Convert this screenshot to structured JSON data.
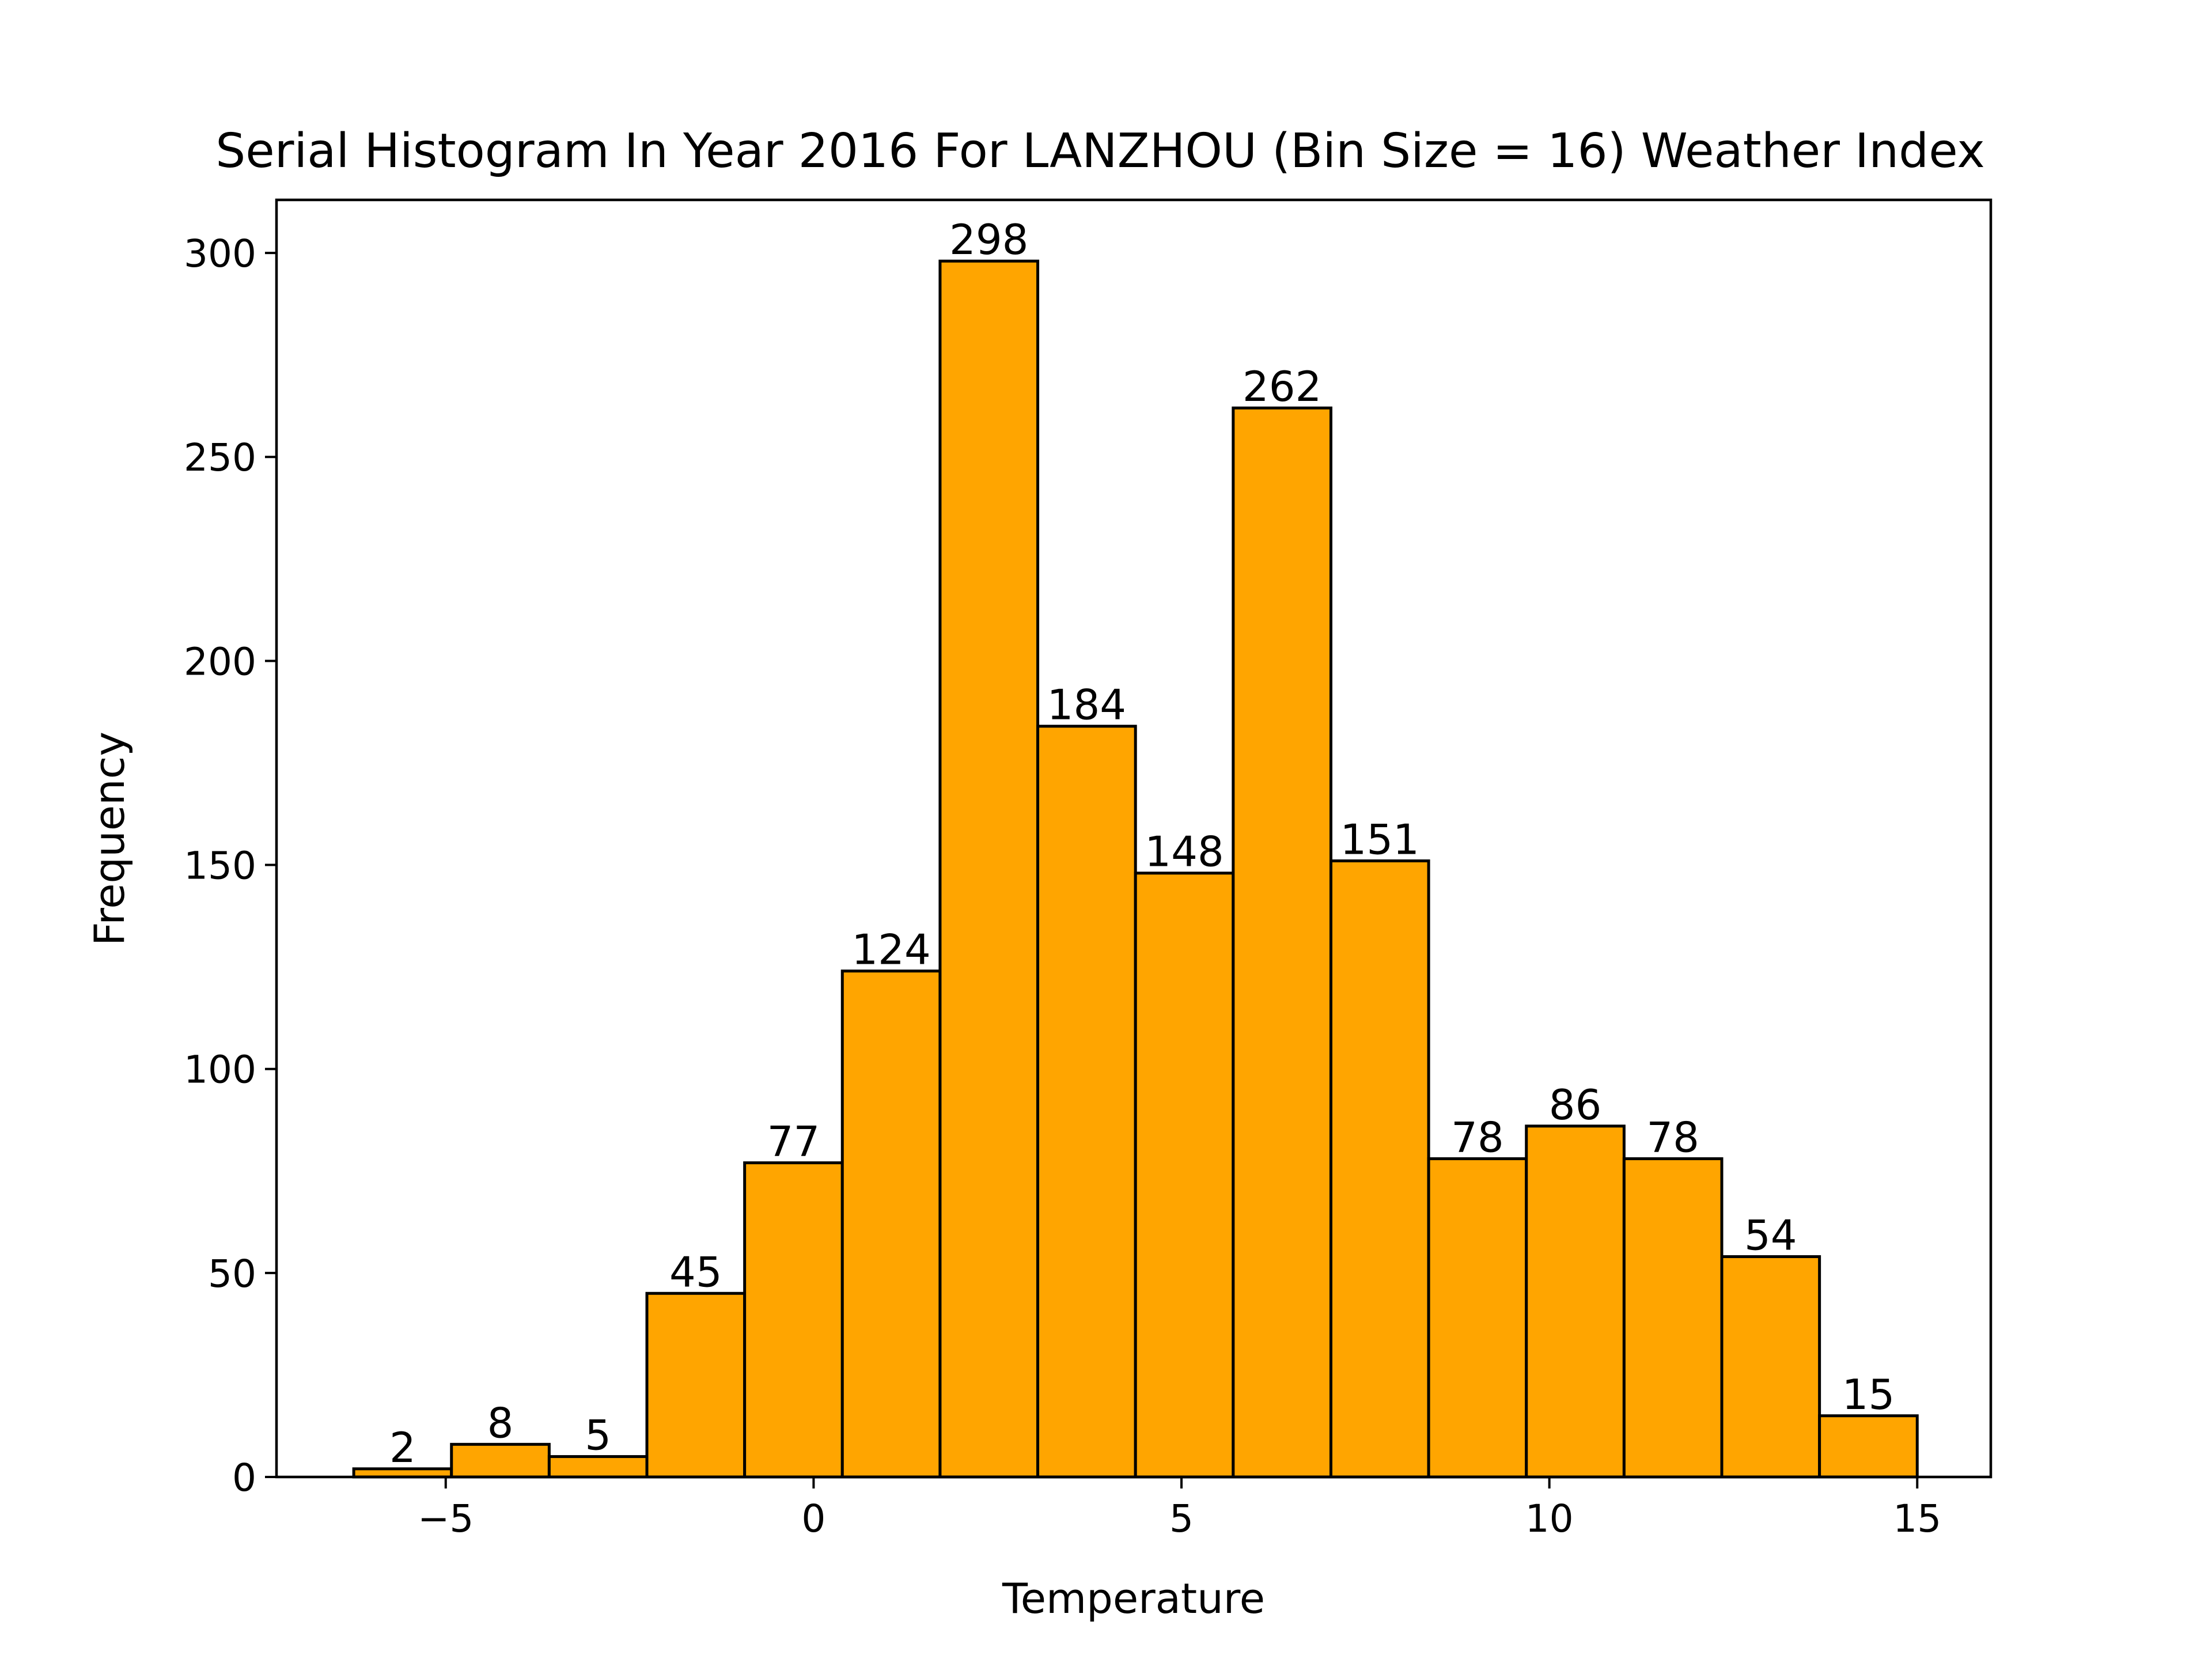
{
  "chart_data": {
    "type": "bar",
    "title": "Serial Histogram In Year 2016 For LANZHOU (Bin Size = 16) Weather Index",
    "xlabel": "Temperature",
    "ylabel": "Frequency",
    "bar_color": "#FFA500",
    "edge_color": "#000000",
    "xlim": [
      -7.3,
      16.0
    ],
    "ylim": [
      0,
      313
    ],
    "xticks": [
      -5,
      0,
      5,
      10,
      15
    ],
    "xtick_labels": [
      "−5",
      "0",
      "5",
      "10",
      "15"
    ],
    "yticks": [
      0,
      50,
      100,
      150,
      200,
      250,
      300
    ],
    "ytick_labels": [
      "0",
      "50",
      "100",
      "150",
      "200",
      "250",
      "300"
    ],
    "bin_range": [
      -6.25,
      15.0
    ],
    "bins": 16,
    "values": [
      2,
      8,
      5,
      45,
      77,
      124,
      298,
      184,
      148,
      262,
      151,
      78,
      86,
      78,
      54,
      15
    ],
    "value_labels": [
      "2",
      "8",
      "5",
      "45",
      "77",
      "124",
      "298",
      "184",
      "148",
      "262",
      "151",
      "78",
      "86",
      "78",
      "54",
      "15"
    ],
    "grid": false,
    "legend": "none"
  }
}
